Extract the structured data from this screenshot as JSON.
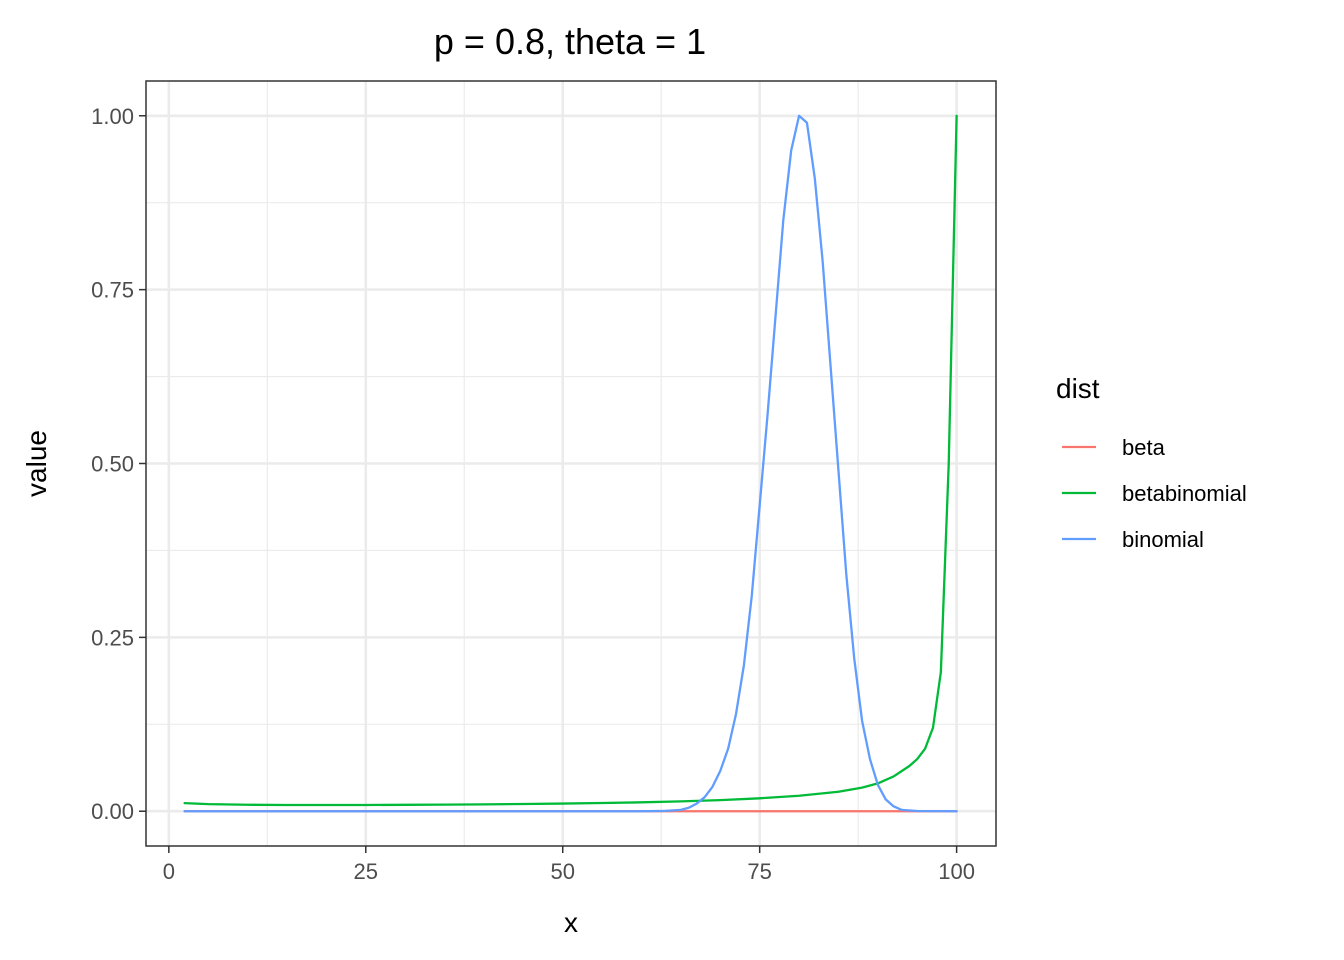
{
  "chart_data": {
    "type": "line",
    "title": "p = 0.8, theta = 1",
    "xlabel": "x",
    "ylabel": "value",
    "xlim": [
      -2.9,
      105
    ],
    "ylim": [
      -0.05,
      1.05
    ],
    "x_ticks": [
      0,
      25,
      50,
      75,
      100
    ],
    "x_tick_labels": [
      "0",
      "25",
      "50",
      "75",
      "100"
    ],
    "x_minor_ticks": [
      12.5,
      37.5,
      62.5,
      87.5
    ],
    "y_ticks": [
      0,
      0.25,
      0.5,
      0.75,
      1
    ],
    "y_tick_labels": [
      "0.00",
      "0.25",
      "0.50",
      "0.75",
      "1.00"
    ],
    "y_minor_ticks": [
      0.125,
      0.375,
      0.625,
      0.875
    ],
    "grid": true,
    "legend": {
      "title": "dist",
      "position": "right",
      "entries": [
        "beta",
        "betabinomial",
        "binomial"
      ]
    },
    "series": [
      {
        "name": "beta",
        "color": "#F8766D",
        "points": [
          [
            2,
            0.0
          ],
          [
            60,
            0.0
          ],
          [
            65,
            0.0
          ],
          [
            70,
            0.0
          ],
          [
            80,
            0.0
          ],
          [
            90,
            0.0
          ],
          [
            95,
            0.0
          ],
          [
            100,
            0.0
          ]
        ]
      },
      {
        "name": "betabinomial",
        "color": "#00BA38",
        "points": [
          [
            2,
            0.0116
          ],
          [
            5,
            0.0102
          ],
          [
            10,
            0.0093
          ],
          [
            15,
            0.009
          ],
          [
            20,
            0.009
          ],
          [
            25,
            0.009
          ],
          [
            30,
            0.0092
          ],
          [
            35,
            0.0095
          ],
          [
            40,
            0.0099
          ],
          [
            45,
            0.0104
          ],
          [
            50,
            0.011
          ],
          [
            55,
            0.0118
          ],
          [
            60,
            0.0128
          ],
          [
            65,
            0.0142
          ],
          [
            70,
            0.016
          ],
          [
            75,
            0.0186
          ],
          [
            80,
            0.0223
          ],
          [
            85,
            0.028
          ],
          [
            88,
            0.034
          ],
          [
            90,
            0.04
          ],
          [
            92,
            0.05
          ],
          [
            94,
            0.065
          ],
          [
            95,
            0.075
          ],
          [
            96,
            0.09
          ],
          [
            97,
            0.12
          ],
          [
            98,
            0.2
          ],
          [
            99,
            0.5
          ],
          [
            100,
            1.0
          ]
        ]
      },
      {
        "name": "binomial",
        "color": "#619CFF",
        "points": [
          [
            2,
            0.0
          ],
          [
            60,
            0.0
          ],
          [
            63,
            0.0005
          ],
          [
            65,
            0.002
          ],
          [
            66,
            0.005
          ],
          [
            67,
            0.011
          ],
          [
            68,
            0.02
          ],
          [
            69,
            0.035
          ],
          [
            70,
            0.058
          ],
          [
            71,
            0.09
          ],
          [
            72,
            0.14
          ],
          [
            73,
            0.21
          ],
          [
            74,
            0.31
          ],
          [
            75,
            0.44
          ],
          [
            76,
            0.57
          ],
          [
            77,
            0.71
          ],
          [
            78,
            0.85
          ],
          [
            79,
            0.95
          ],
          [
            80,
            1.0
          ],
          [
            81,
            0.99
          ],
          [
            82,
            0.91
          ],
          [
            83,
            0.79
          ],
          [
            84,
            0.64
          ],
          [
            85,
            0.49
          ],
          [
            86,
            0.34
          ],
          [
            87,
            0.22
          ],
          [
            88,
            0.13
          ],
          [
            89,
            0.075
          ],
          [
            90,
            0.038
          ],
          [
            91,
            0.017
          ],
          [
            92,
            0.007
          ],
          [
            93,
            0.002
          ],
          [
            95,
            0.0003
          ],
          [
            100,
            0.0
          ]
        ]
      }
    ]
  }
}
